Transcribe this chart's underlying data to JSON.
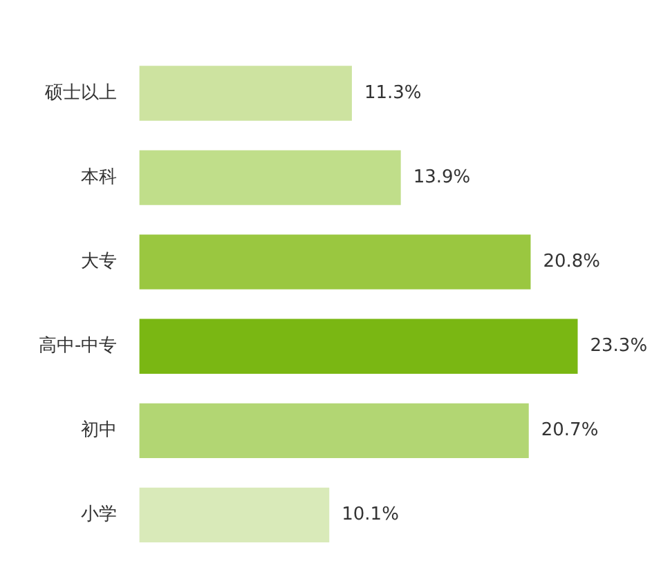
{
  "chart_data": {
    "type": "bar",
    "orientation": "horizontal",
    "categories": [
      "硕士以上",
      "本科",
      "大专",
      "高中-中专",
      "初中",
      "小学"
    ],
    "values": [
      11.3,
      13.9,
      20.8,
      23.3,
      20.7,
      10.1
    ],
    "colors": [
      "#cde3a0",
      "#c0de8a",
      "#9ac740",
      "#7ab713",
      "#b2d673",
      "#d9eab9"
    ],
    "value_labels": [
      "11.3%",
      "13.9%",
      "20.8%",
      "23.3%",
      "20.7%",
      "10.1%"
    ],
    "legend": false
  }
}
